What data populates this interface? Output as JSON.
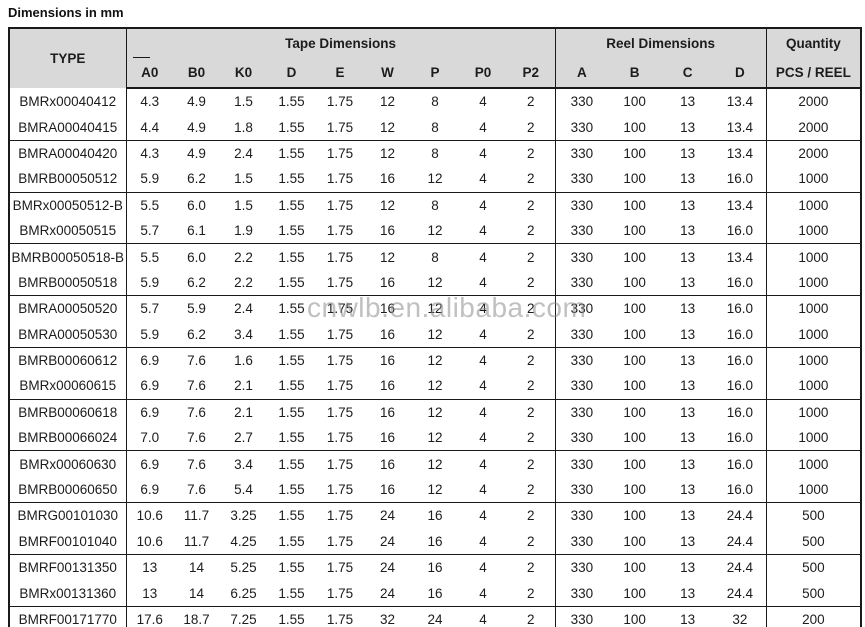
{
  "page_title": "Dimensions in mm",
  "watermark": "cnwlb.en.alibaba.com",
  "colors": {
    "header_bg": "#d9d9d9",
    "border": "#1a1a1a",
    "text": "#1c1c1c",
    "watermark": "#8c8c8c"
  },
  "table": {
    "col_groups": [
      {
        "label": "TYPE",
        "span": 1
      },
      {
        "label": "Tape Dimensions",
        "span": 9
      },
      {
        "label": "Reel Dimensions",
        "span": 4
      },
      {
        "label": "Quantity",
        "span": 1
      }
    ],
    "sub_headers": [
      "A0",
      "B0",
      "K0",
      "D",
      "E",
      "W",
      "P",
      "P0",
      "P2",
      "A",
      "B",
      "C",
      "D",
      "PCS / REEL"
    ],
    "groups": [
      [
        [
          "BMRx00040412",
          "4.3",
          "4.9",
          "1.5",
          "1.55",
          "1.75",
          "12",
          "8",
          "4",
          "2",
          "330",
          "100",
          "13",
          "13.4",
          "2000"
        ],
        [
          "BMRA00040415",
          "4.4",
          "4.9",
          "1.8",
          "1.55",
          "1.75",
          "12",
          "8",
          "4",
          "2",
          "330",
          "100",
          "13",
          "13.4",
          "2000"
        ]
      ],
      [
        [
          "BMRA00040420",
          "4.3",
          "4.9",
          "2.4",
          "1.55",
          "1.75",
          "12",
          "8",
          "4",
          "2",
          "330",
          "100",
          "13",
          "13.4",
          "2000"
        ],
        [
          "BMRB00050512",
          "5.9",
          "6.2",
          "1.5",
          "1.55",
          "1.75",
          "16",
          "12",
          "4",
          "2",
          "330",
          "100",
          "13",
          "16.0",
          "1000"
        ]
      ],
      [
        [
          "BMRx00050512-B",
          "5.5",
          "6.0",
          "1.5",
          "1.55",
          "1.75",
          "12",
          "8",
          "4",
          "2",
          "330",
          "100",
          "13",
          "13.4",
          "1000"
        ],
        [
          "BMRx00050515",
          "5.7",
          "6.1",
          "1.9",
          "1.55",
          "1.75",
          "16",
          "12",
          "4",
          "2",
          "330",
          "100",
          "13",
          "16.0",
          "1000"
        ]
      ],
      [
        [
          "BMRB00050518-B",
          "5.5",
          "6.0",
          "2.2",
          "1.55",
          "1.75",
          "12",
          "8",
          "4",
          "2",
          "330",
          "100",
          "13",
          "13.4",
          "1000"
        ],
        [
          "BMRB00050518",
          "5.9",
          "6.2",
          "2.2",
          "1.55",
          "1.75",
          "16",
          "12",
          "4",
          "2",
          "330",
          "100",
          "13",
          "16.0",
          "1000"
        ]
      ],
      [
        [
          "BMRA00050520",
          "5.7",
          "5.9",
          "2.4",
          "1.55",
          "1.75",
          "16",
          "12",
          "4",
          "2",
          "330",
          "100",
          "13",
          "16.0",
          "1000"
        ],
        [
          "BMRA00050530",
          "5.9",
          "6.2",
          "3.4",
          "1.55",
          "1.75",
          "16",
          "12",
          "4",
          "2",
          "330",
          "100",
          "13",
          "16.0",
          "1000"
        ]
      ],
      [
        [
          "BMRB00060612",
          "6.9",
          "7.6",
          "1.6",
          "1.55",
          "1.75",
          "16",
          "12",
          "4",
          "2",
          "330",
          "100",
          "13",
          "16.0",
          "1000"
        ],
        [
          "BMRx00060615",
          "6.9",
          "7.6",
          "2.1",
          "1.55",
          "1.75",
          "16",
          "12",
          "4",
          "2",
          "330",
          "100",
          "13",
          "16.0",
          "1000"
        ]
      ],
      [
        [
          "BMRB00060618",
          "6.9",
          "7.6",
          "2.1",
          "1.55",
          "1.75",
          "16",
          "12",
          "4",
          "2",
          "330",
          "100",
          "13",
          "16.0",
          "1000"
        ],
        [
          "BMRB00066024",
          "7.0",
          "7.6",
          "2.7",
          "1.55",
          "1.75",
          "16",
          "12",
          "4",
          "2",
          "330",
          "100",
          "13",
          "16.0",
          "1000"
        ]
      ],
      [
        [
          "BMRx00060630",
          "6.9",
          "7.6",
          "3.4",
          "1.55",
          "1.75",
          "16",
          "12",
          "4",
          "2",
          "330",
          "100",
          "13",
          "16.0",
          "1000"
        ],
        [
          "BMRB00060650",
          "6.9",
          "7.6",
          "5.4",
          "1.55",
          "1.75",
          "16",
          "12",
          "4",
          "2",
          "330",
          "100",
          "13",
          "16.0",
          "1000"
        ]
      ],
      [
        [
          "BMRG00101030",
          "10.6",
          "11.7",
          "3.25",
          "1.55",
          "1.75",
          "24",
          "16",
          "4",
          "2",
          "330",
          "100",
          "13",
          "24.4",
          "500"
        ],
        [
          "BMRF00101040",
          "10.6",
          "11.7",
          "4.25",
          "1.55",
          "1.75",
          "24",
          "16",
          "4",
          "2",
          "330",
          "100",
          "13",
          "24.4",
          "500"
        ]
      ],
      [
        [
          "BMRF00131350",
          "13",
          "14",
          "5.25",
          "1.55",
          "1.75",
          "24",
          "16",
          "4",
          "2",
          "330",
          "100",
          "13",
          "24.4",
          "500"
        ],
        [
          "BMRx00131360",
          "13",
          "14",
          "6.25",
          "1.55",
          "1.75",
          "24",
          "16",
          "4",
          "2",
          "330",
          "100",
          "13",
          "24.4",
          "500"
        ]
      ],
      [
        [
          "BMRF00171770",
          "17.6",
          "18.7",
          "7.25",
          "1.55",
          "1.75",
          "32",
          "24",
          "4",
          "2",
          "330",
          "100",
          "13",
          "32",
          "200"
        ]
      ]
    ]
  }
}
